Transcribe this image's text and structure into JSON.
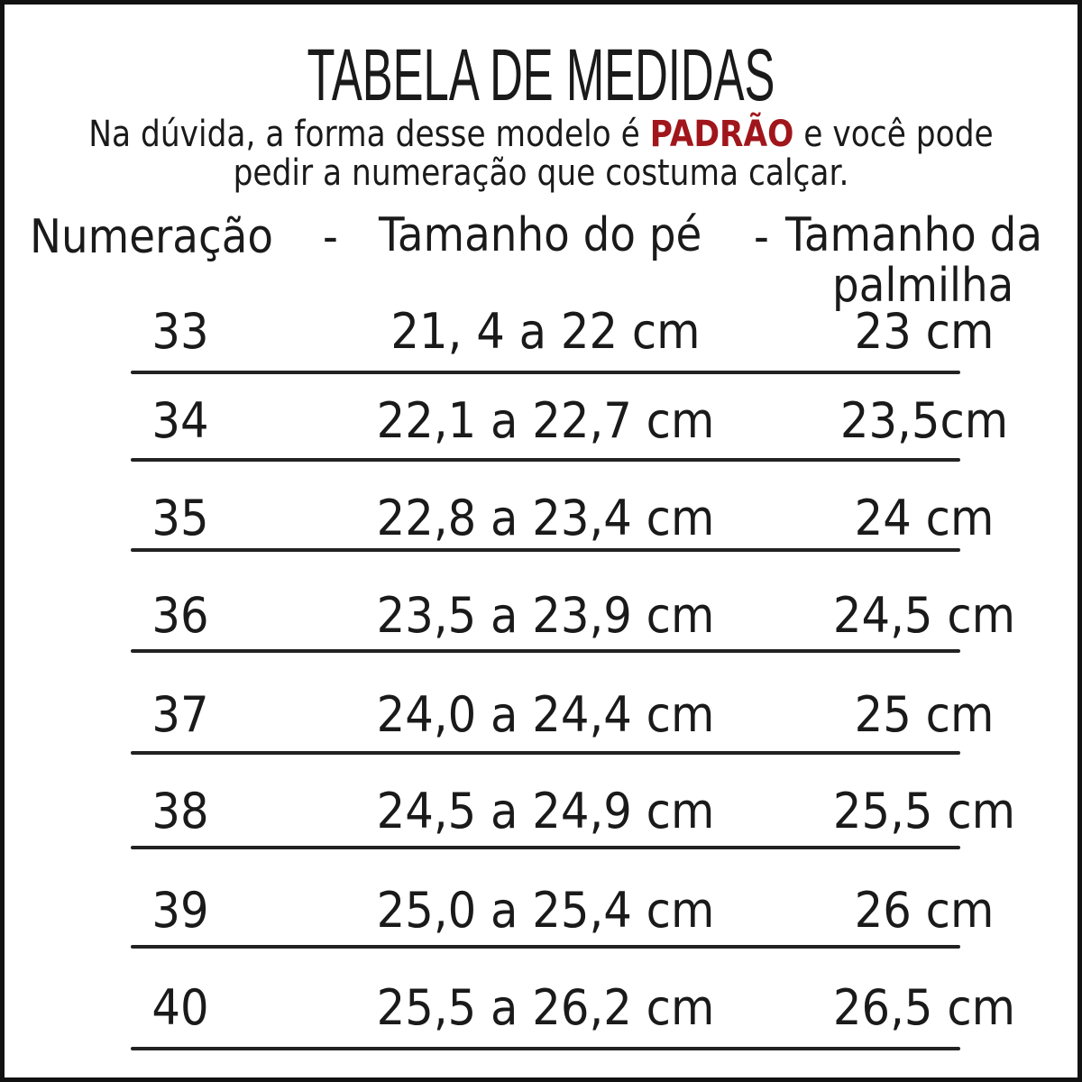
{
  "title": "TABELA DE MEDIDAS",
  "subtitle": {
    "line1_before": "Na dúvida, a forma desse modelo é ",
    "highlight": "PADRÃO",
    "line1_after": " e você pode",
    "line2": "pedir a numeração que costuma calçar.",
    "highlight_color": "#a0161b"
  },
  "headers": {
    "numeracao": "Numeração",
    "sep1": "-",
    "pe": "Tamanho do pé",
    "sep2": "-",
    "palmilha_1": "Tamanho da",
    "palmilha_2": "palmilha"
  },
  "rows": [
    {
      "size": "33",
      "foot": "21, 4 a 22 cm",
      "insole": "23 cm"
    },
    {
      "size": "34",
      "foot": "22,1 a 22,7 cm",
      "insole": "23,5cm"
    },
    {
      "size": "35",
      "foot": "22,8 a 23,4 cm",
      "insole": "24 cm"
    },
    {
      "size": "36",
      "foot": "23,5 a 23,9 cm",
      "insole": "24,5 cm"
    },
    {
      "size": "37",
      "foot": "24,0 a 24,4 cm",
      "insole": "25 cm"
    },
    {
      "size": "38",
      "foot": "24,5 a 24,9 cm",
      "insole": "25,5 cm"
    },
    {
      "size": "39",
      "foot": "25,0 a 25,4 cm",
      "insole": "26 cm"
    },
    {
      "size": "40",
      "foot": "25,5 a 26,2 cm",
      "insole": "26,5 cm"
    }
  ]
}
